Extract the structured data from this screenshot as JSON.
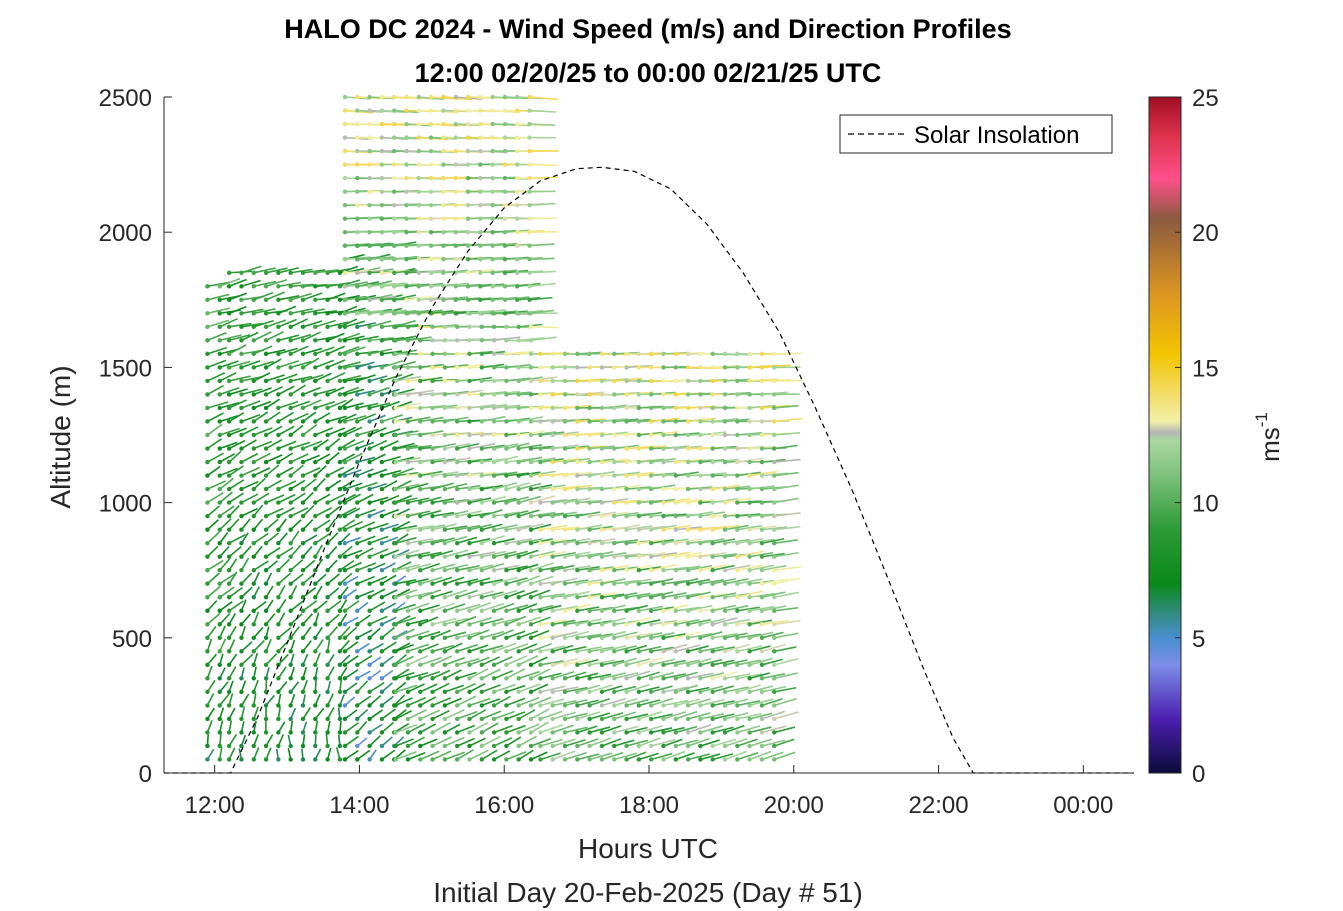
{
  "chart_data": {
    "type": "wind-barb-profile",
    "title": "HALO DC 2024 - Wind Speed (m/s) and Direction Profiles",
    "subtitle": "12:00 02/20/25 to 00:00 02/21/25  UTC",
    "xlabel": "Hours UTC",
    "xlabel2": "Initial Day 20-Feb-2025 (Day # 51)",
    "ylabel": "Altitude (m)",
    "xlim": [
      11.3,
      24.7
    ],
    "ylim": [
      0,
      2500
    ],
    "x_ticks": [
      12,
      14,
      16,
      18,
      20,
      22,
      24
    ],
    "x_tick_labels": [
      "12:00",
      "14:00",
      "16:00",
      "18:00",
      "20:00",
      "22:00",
      "00:00"
    ],
    "y_ticks": [
      0,
      500,
      1000,
      1500,
      2000,
      2500
    ],
    "y_tick_labels": [
      "0",
      "500",
      "1000",
      "1500",
      "2000",
      "2500"
    ],
    "colorbar": {
      "label": "ms",
      "label_superscript": "-1",
      "range": [
        0,
        25
      ],
      "ticks": [
        0,
        5,
        10,
        15,
        20,
        25
      ],
      "tick_labels": [
        "0",
        "5",
        "10",
        "15",
        "20",
        "25"
      ],
      "stops": [
        {
          "v": 0,
          "color": "#0b0b3b"
        },
        {
          "v": 2,
          "color": "#4b1fb0"
        },
        {
          "v": 4,
          "color": "#7b8de8"
        },
        {
          "v": 5,
          "color": "#4a8fd0"
        },
        {
          "v": 6,
          "color": "#2e8b76"
        },
        {
          "v": 7,
          "color": "#0a8a1a"
        },
        {
          "v": 9,
          "color": "#2d9a36"
        },
        {
          "v": 11,
          "color": "#7cc17b"
        },
        {
          "v": 12.3,
          "color": "#a9d79f"
        },
        {
          "v": 12.6,
          "color": "#b5b5b5"
        },
        {
          "v": 13,
          "color": "#f1f0a8"
        },
        {
          "v": 14,
          "color": "#f3dd6a"
        },
        {
          "v": 15.5,
          "color": "#f2c400"
        },
        {
          "v": 17.5,
          "color": "#e09a20"
        },
        {
          "v": 19,
          "color": "#b87a2e"
        },
        {
          "v": 20.5,
          "color": "#8a5a40"
        },
        {
          "v": 22,
          "color": "#ff4f8a"
        },
        {
          "v": 23.5,
          "color": "#e0344f"
        },
        {
          "v": 25,
          "color": "#a00e22"
        }
      ]
    },
    "series": [
      {
        "name": "Solar Insolation",
        "style": "dashed",
        "color": "#000000",
        "x": [
          11.0,
          12.22,
          12.6,
          13.0,
          13.5,
          14.0,
          14.5,
          15.0,
          15.5,
          16.0,
          16.5,
          17.0,
          17.35,
          17.8,
          18.3,
          18.8,
          19.3,
          19.8,
          20.3,
          20.8,
          21.3,
          21.8,
          22.2,
          22.48,
          24.7
        ],
        "y": [
          0,
          0,
          210,
          480,
          820,
          1150,
          1460,
          1720,
          1930,
          2090,
          2190,
          2235,
          2240,
          2225,
          2160,
          2030,
          1850,
          1630,
          1350,
          1050,
          720,
          380,
          130,
          0,
          0
        ]
      }
    ],
    "wind_barbs": {
      "cells": [
        {
          "x0": 11.9,
          "x1": 12.2,
          "y0": 50,
          "y1": 1800,
          "speed_low": 6,
          "speed_high": 11,
          "dir_low": 175,
          "dir_high": 260
        },
        {
          "x0": 12.2,
          "x1": 13.8,
          "y0": 50,
          "y1": 1850,
          "speed_low": 6,
          "speed_high": 10,
          "dir_low": 170,
          "dir_high": 265
        },
        {
          "x0": 13.8,
          "x1": 14.5,
          "y0": 50,
          "y1": 1950,
          "speed_low": 4,
          "speed_high": 11,
          "dir_low": 200,
          "dir_high": 268
        },
        {
          "x0": 14.5,
          "x1": 16.5,
          "y0": 50,
          "y1": 1700,
          "speed_low": 7,
          "speed_high": 14,
          "dir_low": 220,
          "dir_high": 275
        },
        {
          "x0": 13.8,
          "x1": 16.5,
          "y0": 1700,
          "y1": 2500,
          "speed_low": 9,
          "speed_high": 15,
          "dir_low": 255,
          "dir_high": 280
        },
        {
          "x0": 16.5,
          "x1": 19.75,
          "y0": 50,
          "y1": 1550,
          "speed_low": 8,
          "speed_high": 15,
          "dir_low": 235,
          "dir_high": 275
        }
      ]
    },
    "legend": {
      "position": "top-right",
      "entries": [
        "Solar Insolation"
      ]
    }
  }
}
